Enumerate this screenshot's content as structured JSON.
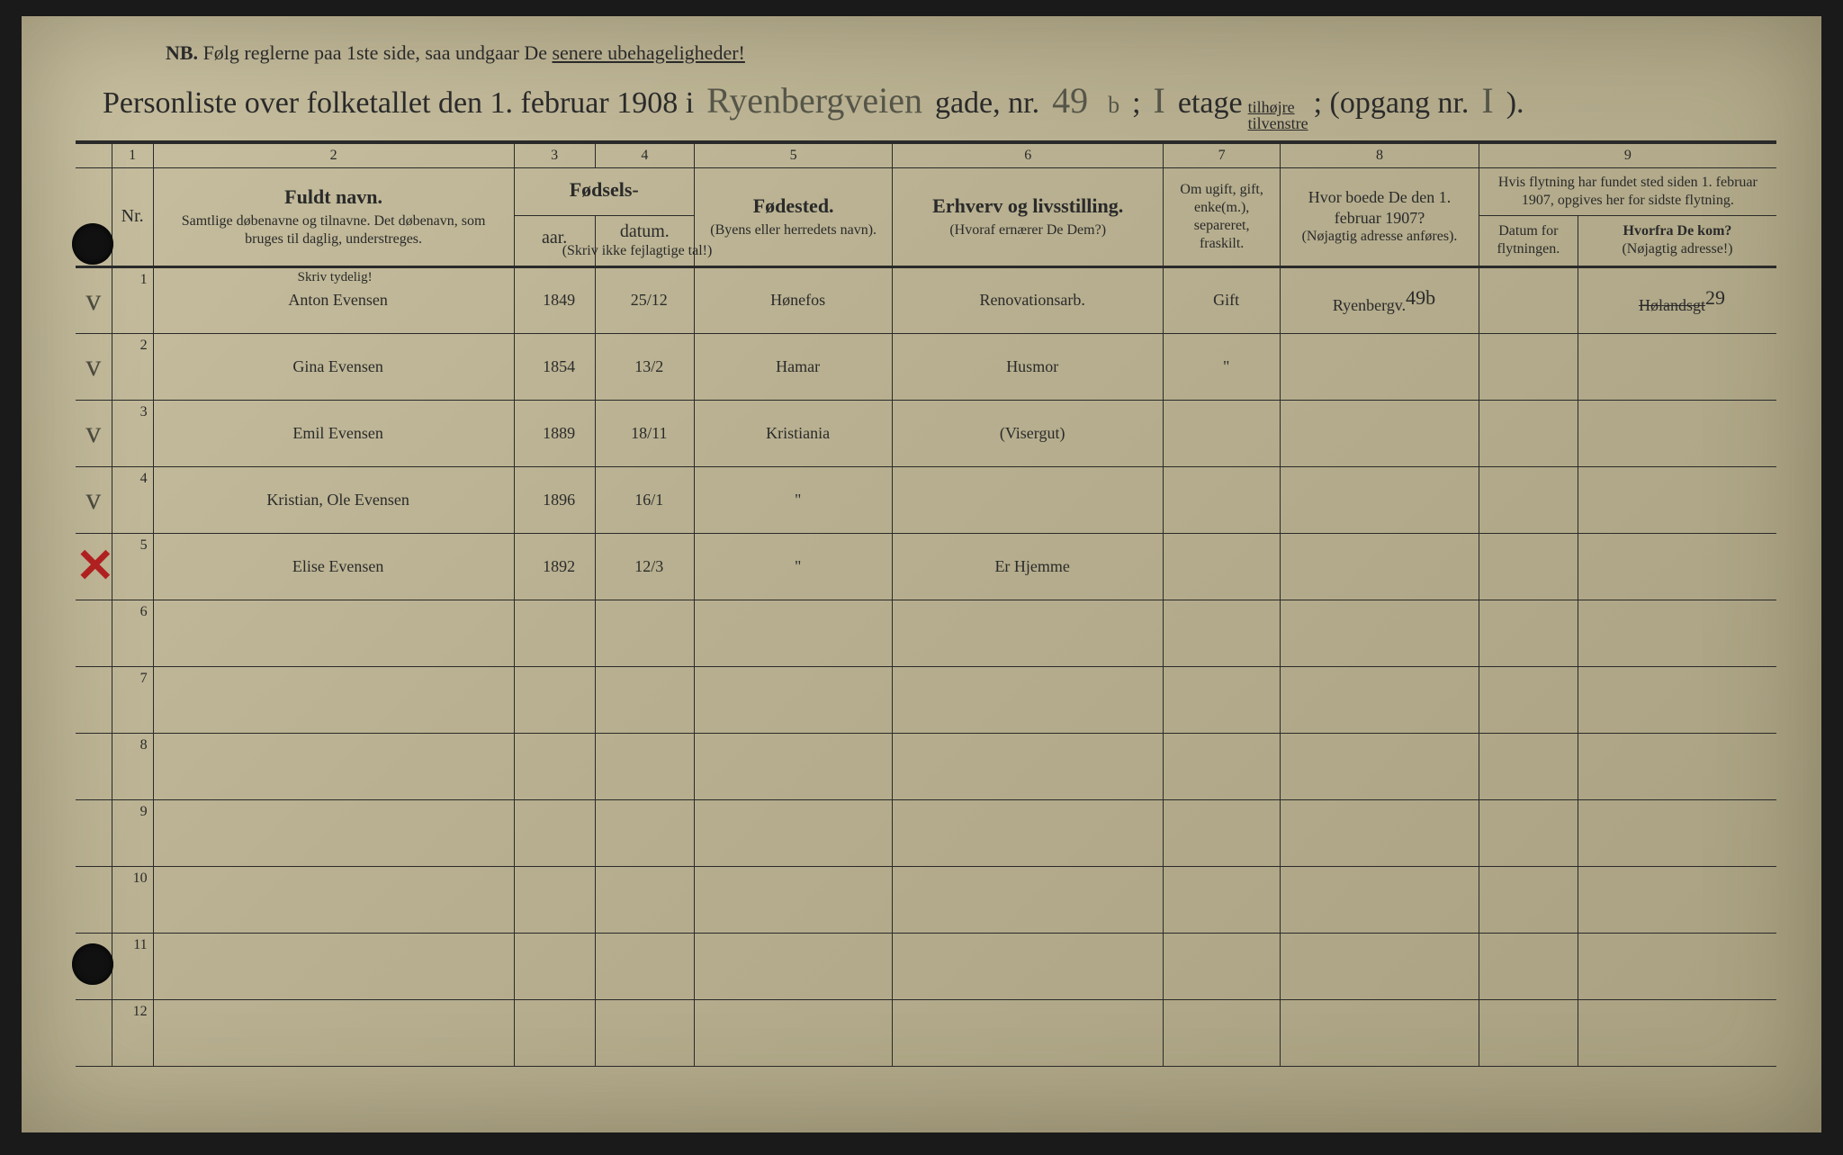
{
  "nb": {
    "prefix": "NB.",
    "text_a": "Følg reglerne paa 1ste side, saa undgaar De ",
    "text_b": "senere ubehageligheder!"
  },
  "title": {
    "t1": "Personliste over folketallet den 1. februar 1908 i",
    "street": "Ryenbergveien",
    "gade": "gade, nr.",
    "nr": "49",
    "nr_sup": "b",
    "floor": "I",
    "etage": "etage",
    "side_top": "tilhøjre",
    "side_bot": "tilvenstre",
    "opgang_label": "; (opgang nr.",
    "opgang": "I",
    "close": ")."
  },
  "colnums": [
    "1",
    "2",
    "3",
    "4",
    "5",
    "6",
    "7",
    "8",
    "9"
  ],
  "headers": {
    "nr": "Nr.",
    "name_hd": "Fuldt navn.",
    "name_sub": "Samtlige døbenavne og tilnavne. Det døbenavn, som bruges til daglig, understreges.",
    "birth_hd": "Fødsels-",
    "yr": "aar.",
    "dt": "datum.",
    "birth_sub": "(Skriv ikke fejlagtige tal!)",
    "bp_hd": "Fødested.",
    "bp_sub": "(Byens eller herredets navn).",
    "occ_hd": "Erhverv og livsstilling.",
    "occ_sub": "(Hvoraf ernærer De Dem?)",
    "ms_sub": "Om ugift, gift, enke(m.), separeret, fraskilt.",
    "addr_hd": "Hvor boede De den 1. februar 1907?",
    "addr_sub": "(Nøjagtig adresse anføres).",
    "move_hd": "Hvis flytning har fundet sted siden 1. februar 1907, opgives her for sidste flytning.",
    "md": "Datum for flytningen.",
    "from_hd": "Hvorfra De kom?",
    "from_sub": "(Nøjagtig adresse!)",
    "skrive": "Skriv tydelig!"
  },
  "rows": [
    {
      "mark": "V",
      "nr": "1",
      "name": "Anton Evensen",
      "yr": "1849",
      "dt": "25/12",
      "bp": "Hønefos",
      "occ": "Renovationsarb.",
      "ms": "Gift",
      "addr": "Ryenbergv.",
      "addr_sup": "49b",
      "md": "",
      "from": "Hølandsgt",
      "from_sup": "29",
      "from_strike": true
    },
    {
      "mark": "V",
      "nr": "2",
      "name": "Gina Evensen",
      "yr": "1854",
      "dt": "13/2",
      "bp": "Hamar",
      "occ": "Husmor",
      "ms": "\"",
      "addr": "",
      "addr_sup": "",
      "md": "",
      "from": "",
      "from_sup": ""
    },
    {
      "mark": "V",
      "nr": "3",
      "name": "Emil Evensen",
      "yr": "1889",
      "dt": "18/11",
      "bp": "Kristiania",
      "occ": "(Visergut)",
      "ms": "",
      "addr": "",
      "addr_sup": "",
      "md": "",
      "from": "",
      "from_sup": ""
    },
    {
      "mark": "V",
      "nr": "4",
      "name": "Kristian, Ole Evensen",
      "yr": "1896",
      "dt": "16/1",
      "bp": "\"",
      "occ": "",
      "ms": "",
      "addr": "",
      "addr_sup": "",
      "md": "",
      "from": "",
      "from_sup": ""
    },
    {
      "mark": "X",
      "nr": "5",
      "name": "Elise Evensen",
      "yr": "1892",
      "dt": "12/3",
      "bp": "\"",
      "occ": "Er Hjemme",
      "ms": "",
      "addr": "",
      "addr_sup": "",
      "md": "",
      "from": "",
      "from_sup": ""
    },
    {
      "mark": "",
      "nr": "6",
      "name": "",
      "yr": "",
      "dt": "",
      "bp": "",
      "occ": "",
      "ms": "",
      "addr": "",
      "addr_sup": "",
      "md": "",
      "from": "",
      "from_sup": ""
    },
    {
      "mark": "",
      "nr": "7",
      "name": "",
      "yr": "",
      "dt": "",
      "bp": "",
      "occ": "",
      "ms": "",
      "addr": "",
      "addr_sup": "",
      "md": "",
      "from": "",
      "from_sup": ""
    },
    {
      "mark": "",
      "nr": "8",
      "name": "",
      "yr": "",
      "dt": "",
      "bp": "",
      "occ": "",
      "ms": "",
      "addr": "",
      "addr_sup": "",
      "md": "",
      "from": "",
      "from_sup": ""
    },
    {
      "mark": "",
      "nr": "9",
      "name": "",
      "yr": "",
      "dt": "",
      "bp": "",
      "occ": "",
      "ms": "",
      "addr": "",
      "addr_sup": "",
      "md": "",
      "from": "",
      "from_sup": ""
    },
    {
      "mark": "",
      "nr": "10",
      "name": "",
      "yr": "",
      "dt": "",
      "bp": "",
      "occ": "",
      "ms": "",
      "addr": "",
      "addr_sup": "",
      "md": "",
      "from": "",
      "from_sup": ""
    },
    {
      "mark": "",
      "nr": "11",
      "name": "",
      "yr": "",
      "dt": "",
      "bp": "",
      "occ": "",
      "ms": "",
      "addr": "",
      "addr_sup": "",
      "md": "",
      "from": "",
      "from_sup": ""
    },
    {
      "mark": "",
      "nr": "12",
      "name": "",
      "yr": "",
      "dt": "",
      "bp": "",
      "occ": "",
      "ms": "",
      "addr": "",
      "addr_sup": "",
      "md": "",
      "from": "",
      "from_sup": ""
    }
  ],
  "colors": {
    "paper": "#b8b090",
    "ink": "#2a2a2a",
    "pencil": "#4a4a3e",
    "red": "#b02020"
  }
}
